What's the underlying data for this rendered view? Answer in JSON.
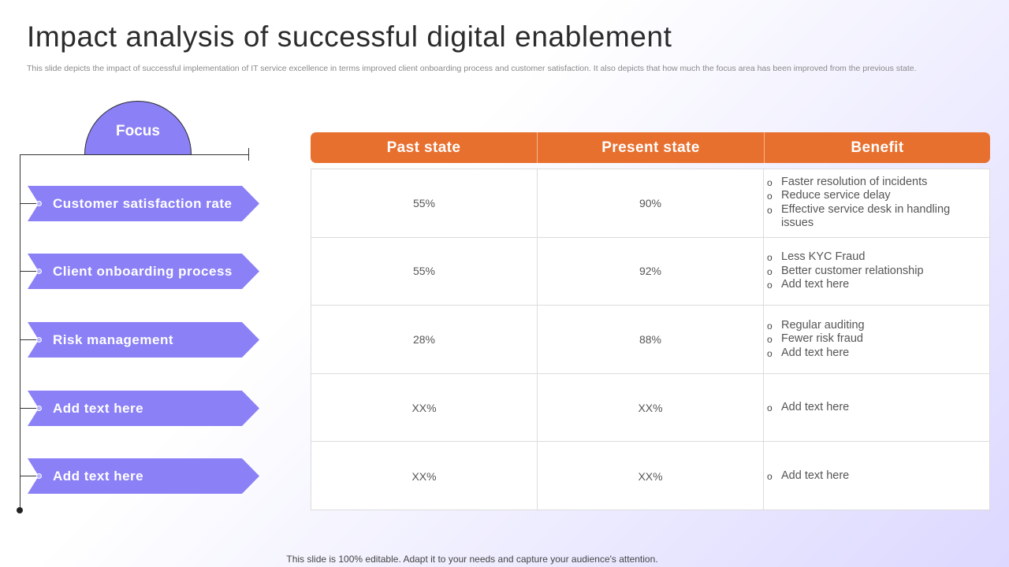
{
  "title": "Impact analysis of successful  digital enablement",
  "subtitle": "This slide depicts the impact of successful implementation of  IT  service excellence in terms improved client onboarding process and customer satisfaction.  It also depicts that how much the focus area has been improved from the previous state.",
  "focus": {
    "label": "Focus",
    "items": [
      {
        "label": "Customer satisfaction  rate"
      },
      {
        "label": "Client onboarding process"
      },
      {
        "label": "Risk management"
      },
      {
        "label": "Add text here"
      },
      {
        "label": "Add text here"
      }
    ]
  },
  "table": {
    "headers": [
      "Past state",
      "Present state",
      "Benefit"
    ],
    "rows": [
      {
        "past": "55%",
        "present": "90%",
        "benefits": [
          "Faster resolution of incidents",
          "Reduce service delay",
          "Effective service desk in handling issues"
        ]
      },
      {
        "past": "55%",
        "present": "92%",
        "benefits": [
          "Less KYC Fraud",
          "Better customer relationship",
          "Add text here"
        ]
      },
      {
        "past": "28%",
        "present": "88%",
        "benefits": [
          "Regular auditing",
          "Fewer risk fraud",
          "Add text here"
        ]
      },
      {
        "past": "XX%",
        "present": "XX%",
        "benefits": [
          "Add text here"
        ]
      },
      {
        "past": "XX%",
        "present": "XX%",
        "benefits": [
          "Add text here"
        ]
      }
    ]
  },
  "footer": "This slide is 100% editable. Adapt it to your needs and capture your audience's attention.",
  "colors": {
    "accent_purple": "#8b80f5",
    "header_orange": "#e8702f"
  }
}
